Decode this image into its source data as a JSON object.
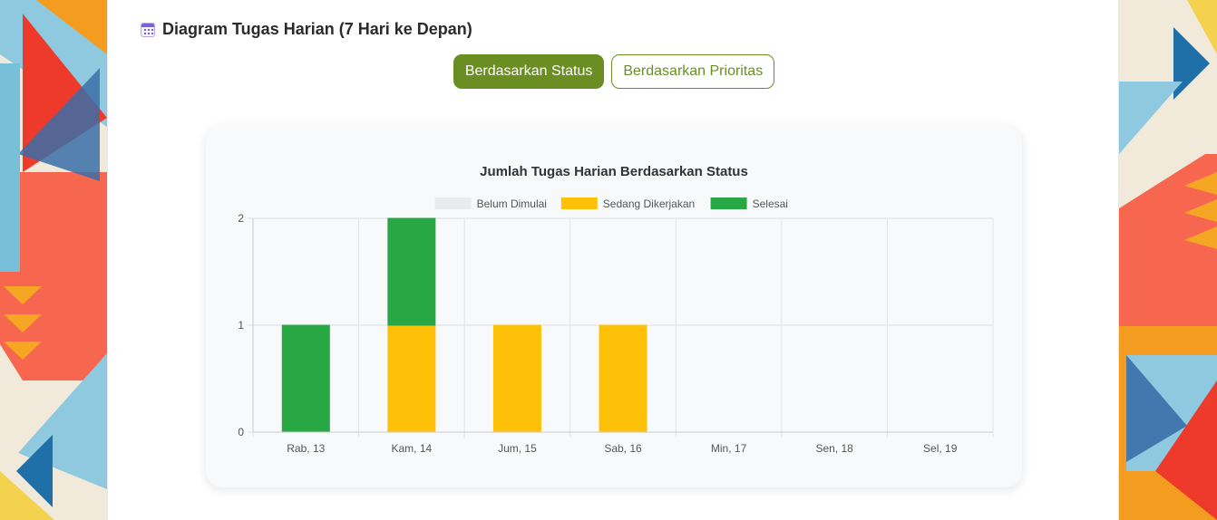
{
  "page": {
    "section_title": "Diagram Tugas Harian (7 Hari ke Depan)",
    "section_icon": "calendar-icon",
    "toggles": [
      {
        "label": "Berdasarkan Status",
        "active": true
      },
      {
        "label": "Berdasarkan Prioritas",
        "active": false
      }
    ],
    "accent_color": "#6b8e23"
  },
  "chart_data": {
    "type": "bar",
    "stacked": true,
    "title": "Jumlah Tugas Harian Berdasarkan Status",
    "categories": [
      "Rab, 13",
      "Kam, 14",
      "Jum, 15",
      "Sab, 16",
      "Min, 17",
      "Sen, 18",
      "Sel, 19"
    ],
    "series": [
      {
        "name": "Belum Dimulai",
        "color": "#e9ebee",
        "values": [
          0,
          0,
          0,
          0,
          0,
          0,
          0
        ]
      },
      {
        "name": "Sedang Dikerjakan",
        "color": "#ffc107",
        "values": [
          0,
          1,
          1,
          1,
          0,
          0,
          0
        ]
      },
      {
        "name": "Selesai",
        "color": "#28a745",
        "values": [
          1,
          1,
          0,
          0,
          0,
          0,
          0
        ]
      }
    ],
    "ylim": [
      0,
      2
    ],
    "yticks": [
      0,
      1,
      2
    ],
    "xlabel": "",
    "ylabel": "",
    "grid": true,
    "legend_position": "top"
  }
}
